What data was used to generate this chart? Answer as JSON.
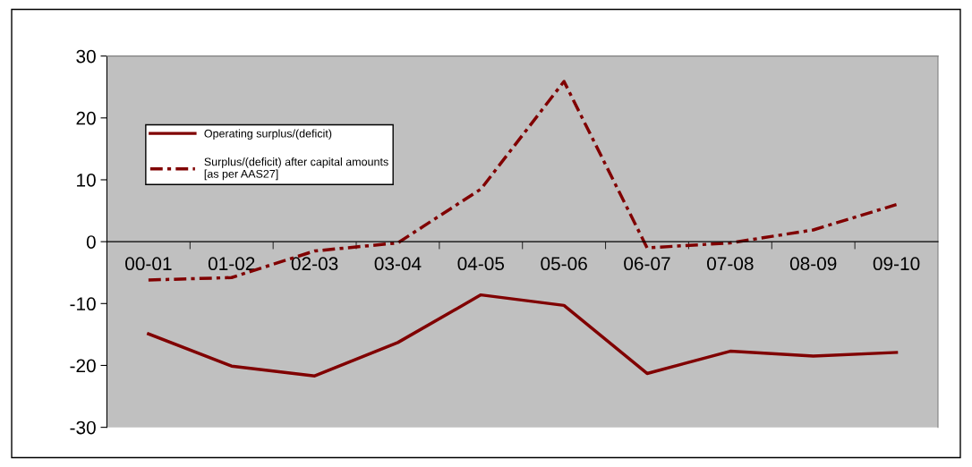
{
  "chart_data": {
    "type": "line",
    "categories": [
      "00-01",
      "01-02",
      "02-03",
      "03-04",
      "04-05",
      "05-06",
      "06-07",
      "07-08",
      "08-09",
      "09-10"
    ],
    "series": [
      {
        "name": "Operating surplus/(deficit)",
        "color": "#800000",
        "line_style": "solid",
        "values": [
          -14.9,
          -20.1,
          -21.7,
          -16.3,
          -8.6,
          -10.3,
          -21.3,
          -17.7,
          -18.5,
          -17.9
        ]
      },
      {
        "name": "Surplus/(deficit) after capital amounts\n[as per AAS27]",
        "color": "#800000",
        "line_style": "dashed",
        "values": [
          -6.2,
          -5.8,
          -1.5,
          -0.2,
          8.5,
          25.9,
          -1.0,
          -0.2,
          1.9,
          6.0
        ]
      }
    ],
    "ylim": [
      -30,
      30
    ],
    "yticks": [
      -30,
      -20,
      -10,
      0,
      10,
      20,
      30
    ],
    "grid": false,
    "legend": "top left",
    "marker": "none"
  }
}
